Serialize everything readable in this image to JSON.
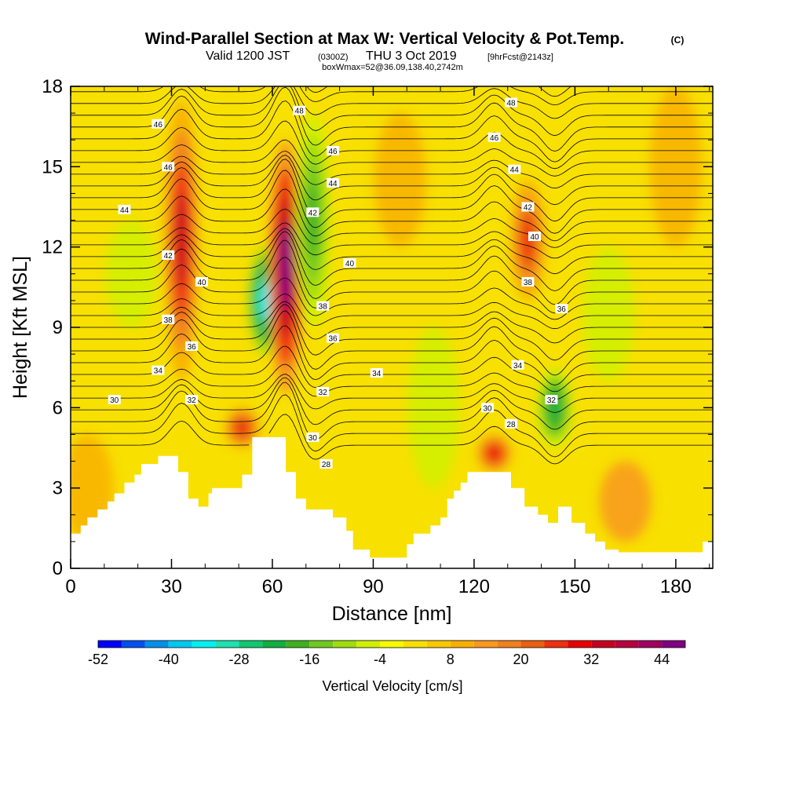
{
  "title": "Wind-Parallel Section at Max W: Vertical Velocity & Pot.Temp.",
  "copyright": "(C)",
  "subtitle_valid": "Valid 1200 JST",
  "subtitle_z": "(0300Z)",
  "subtitle_date": "THU 3 Oct 2019",
  "subtitle_fcst": "[9hrFcst@2143z]",
  "subtitle2": "boxWmax=52@36.09,138.40,2742m",
  "chart_data": {
    "type": "heatmap",
    "xlabel": "Distance [nm]",
    "ylabel": "Height [Kft MSL]",
    "xlim": [
      0,
      191
    ],
    "ylim": [
      0,
      18
    ],
    "x_ticks": [
      0,
      30,
      60,
      90,
      120,
      150,
      180
    ],
    "y_ticks": [
      0,
      3,
      6,
      9,
      12,
      15,
      18
    ],
    "colorbar": {
      "label": "Vertical Velocity [cm/s]",
      "levels": [
        -52,
        -48,
        -44,
        -40,
        -36,
        -32,
        -28,
        -24,
        -20,
        -16,
        -12,
        -8,
        -4,
        0,
        4,
        8,
        12,
        16,
        20,
        24,
        28,
        32,
        36,
        40,
        44,
        48
      ],
      "tick_labels": [
        "-52",
        "-40",
        "-28",
        "-16",
        "-4",
        "8",
        "20",
        "32",
        "44"
      ],
      "colors": [
        "#0000ff",
        "#0050f0",
        "#0090e8",
        "#00c8f0",
        "#00f0f0",
        "#20e0b0",
        "#10c870",
        "#10b040",
        "#40b020",
        "#70c820",
        "#a0dc10",
        "#d0f000",
        "#f8f800",
        "#f8e000",
        "#f8c800",
        "#f8b000",
        "#f89820",
        "#f08020",
        "#e86010",
        "#f03010",
        "#e80000",
        "#c80020",
        "#b80040",
        "#a00060",
        "#800080"
      ]
    },
    "vertical_velocity_features": [
      {
        "x": 33,
        "y_min": 7,
        "y_max": 17.5,
        "w_max": 32
      },
      {
        "x": 51,
        "y_min": 4.5,
        "y_max": 6,
        "w_max": 28
      },
      {
        "x": 58,
        "y_min": 8,
        "y_max": 12,
        "w_min": -34
      },
      {
        "x": 64,
        "y_min": 6.5,
        "y_max": 16,
        "w_max": 44
      },
      {
        "x": 72,
        "y_min": 9,
        "y_max": 17,
        "w_min": -20
      },
      {
        "x": 126,
        "y_min": 3.6,
        "y_max": 5,
        "w_max": 30
      },
      {
        "x": 136,
        "y_min": 10,
        "y_max": 14.5,
        "w_max": 26
      },
      {
        "x": 144,
        "y_min": 4.5,
        "y_max": 7.5,
        "w_min": -22
      }
    ],
    "potential_temperature_labels": [
      {
        "text": "46",
        "x": 26,
        "y": 16.6
      },
      {
        "text": "46",
        "x": 29,
        "y": 15.0
      },
      {
        "text": "44",
        "x": 16,
        "y": 13.4
      },
      {
        "text": "42",
        "x": 29,
        "y": 11.7
      },
      {
        "text": "40",
        "x": 39,
        "y": 10.7
      },
      {
        "text": "38",
        "x": 29,
        "y": 9.3
      },
      {
        "text": "36",
        "x": 36,
        "y": 8.3
      },
      {
        "text": "34",
        "x": 26,
        "y": 7.4
      },
      {
        "text": "30",
        "x": 13,
        "y": 6.3
      },
      {
        "text": "32",
        "x": 36,
        "y": 6.3
      },
      {
        "text": "48",
        "x": 68,
        "y": 17.1
      },
      {
        "text": "46",
        "x": 78,
        "y": 15.6
      },
      {
        "text": "44",
        "x": 78,
        "y": 14.4
      },
      {
        "text": "42",
        "x": 72,
        "y": 13.3
      },
      {
        "text": "40",
        "x": 83,
        "y": 11.4
      },
      {
        "text": "38",
        "x": 75,
        "y": 9.8
      },
      {
        "text": "36",
        "x": 78,
        "y": 8.6
      },
      {
        "text": "34",
        "x": 91,
        "y": 7.3
      },
      {
        "text": "32",
        "x": 75,
        "y": 6.6
      },
      {
        "text": "30",
        "x": 72,
        "y": 4.9
      },
      {
        "text": "28",
        "x": 76,
        "y": 3.9
      },
      {
        "text": "48",
        "x": 131,
        "y": 17.4
      },
      {
        "text": "46",
        "x": 126,
        "y": 16.1
      },
      {
        "text": "44",
        "x": 132,
        "y": 14.9
      },
      {
        "text": "42",
        "x": 136,
        "y": 13.5
      },
      {
        "text": "40",
        "x": 138,
        "y": 12.4
      },
      {
        "text": "38",
        "x": 136,
        "y": 10.7
      },
      {
        "text": "36",
        "x": 146,
        "y": 9.7
      },
      {
        "text": "34",
        "x": 133,
        "y": 7.6
      },
      {
        "text": "32",
        "x": 143,
        "y": 6.3
      },
      {
        "text": "30",
        "x": 124,
        "y": 6.0
      },
      {
        "text": "28",
        "x": 131,
        "y": 5.4
      }
    ],
    "terrain_kft": [
      [
        0,
        1.3
      ],
      [
        3,
        1.3
      ],
      [
        3,
        1.6
      ],
      [
        5,
        1.6
      ],
      [
        5,
        1.9
      ],
      [
        8,
        1.9
      ],
      [
        8,
        2.2
      ],
      [
        11,
        2.2
      ],
      [
        11,
        2.5
      ],
      [
        13,
        2.5
      ],
      [
        13,
        2.8
      ],
      [
        16,
        2.8
      ],
      [
        16,
        3.2
      ],
      [
        19,
        3.2
      ],
      [
        19,
        3.5
      ],
      [
        21,
        3.5
      ],
      [
        21,
        3.9
      ],
      [
        26,
        3.9
      ],
      [
        26,
        4.2
      ],
      [
        32,
        4.2
      ],
      [
        32,
        3.6
      ],
      [
        35,
        3.6
      ],
      [
        35,
        2.6
      ],
      [
        38,
        2.6
      ],
      [
        38,
        2.3
      ],
      [
        41,
        2.3
      ],
      [
        41,
        2.8
      ],
      [
        42,
        2.8
      ],
      [
        42,
        3.0
      ],
      [
        51,
        3.0
      ],
      [
        51,
        3.5
      ],
      [
        54,
        3.5
      ],
      [
        54,
        4.9
      ],
      [
        64,
        4.9
      ],
      [
        64,
        3.6
      ],
      [
        67,
        3.6
      ],
      [
        67,
        2.6
      ],
      [
        70,
        2.6
      ],
      [
        70,
        2.2
      ],
      [
        78,
        2.2
      ],
      [
        78,
        1.9
      ],
      [
        82,
        1.9
      ],
      [
        82,
        1.4
      ],
      [
        84,
        1.4
      ],
      [
        84,
        0.7
      ],
      [
        89,
        0.7
      ],
      [
        89,
        0.4
      ],
      [
        100,
        0.4
      ],
      [
        100,
        0.9
      ],
      [
        102,
        0.9
      ],
      [
        102,
        1.3
      ],
      [
        107,
        1.3
      ],
      [
        107,
        1.6
      ],
      [
        110,
        1.6
      ],
      [
        110,
        1.9
      ],
      [
        112,
        1.9
      ],
      [
        112,
        2.6
      ],
      [
        114,
        2.6
      ],
      [
        114,
        2.9
      ],
      [
        116,
        2.9
      ],
      [
        116,
        3.2
      ],
      [
        118,
        3.2
      ],
      [
        118,
        3.6
      ],
      [
        131,
        3.6
      ],
      [
        131,
        3.0
      ],
      [
        135,
        3.0
      ],
      [
        135,
        2.3
      ],
      [
        139,
        2.3
      ],
      [
        139,
        2.0
      ],
      [
        142,
        2.0
      ],
      [
        142,
        1.7
      ],
      [
        145,
        1.7
      ],
      [
        145,
        2.3
      ],
      [
        149,
        2.3
      ],
      [
        149,
        1.7
      ],
      [
        153,
        1.7
      ],
      [
        153,
        1.3
      ],
      [
        156,
        1.3
      ],
      [
        156,
        1.0
      ],
      [
        159,
        1.0
      ],
      [
        159,
        0.7
      ],
      [
        163,
        0.7
      ],
      [
        163,
        0.6
      ],
      [
        188,
        0.6
      ],
      [
        188,
        1.0
      ],
      [
        191,
        1.0
      ]
    ]
  }
}
